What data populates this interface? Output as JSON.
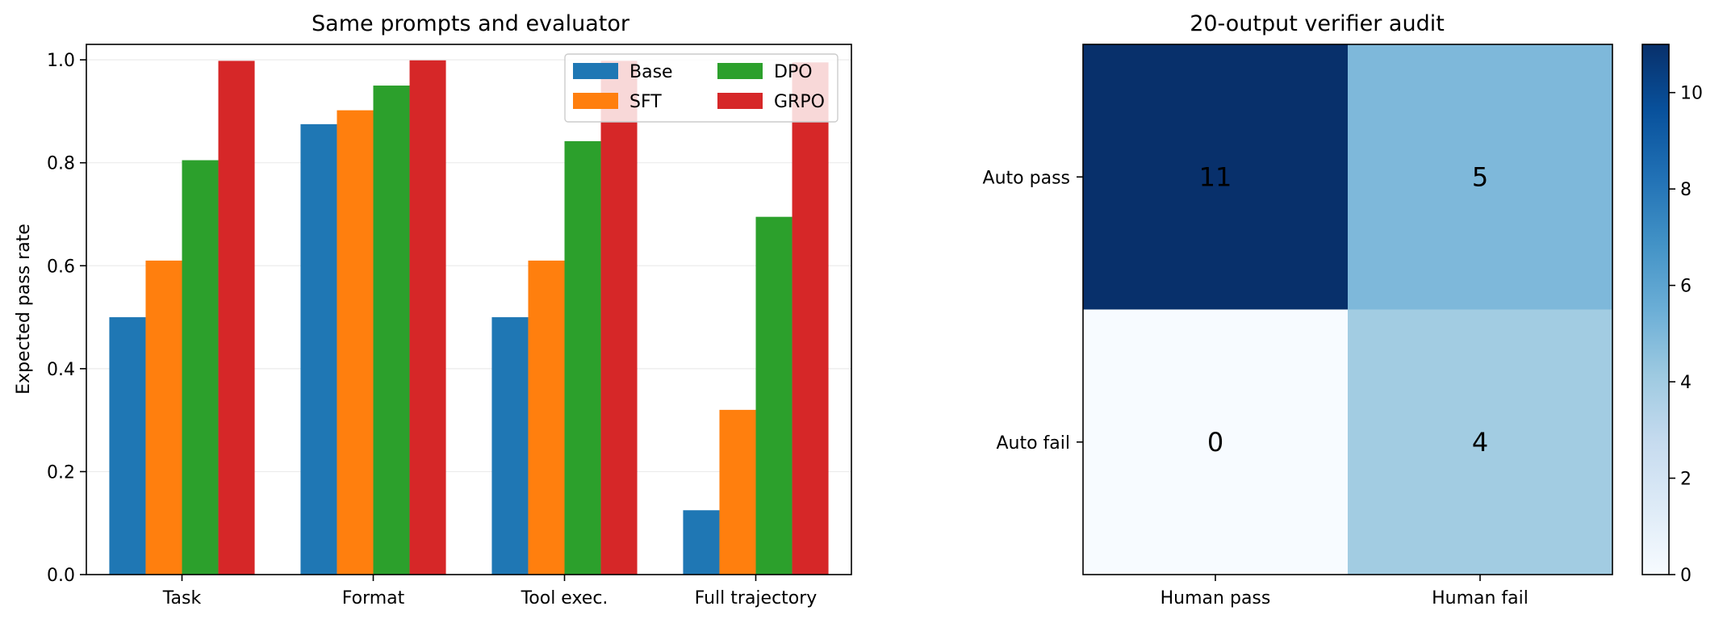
{
  "chart_data": [
    {
      "type": "bar",
      "title": "Same prompts and evaluator",
      "xlabel": "",
      "ylabel": "Expected pass rate",
      "ylim": [
        0,
        1.03
      ],
      "yticks": [
        0.0,
        0.2,
        0.4,
        0.6,
        0.8,
        1.0
      ],
      "ytick_labels": [
        "0.0",
        "0.2",
        "0.4",
        "0.6",
        "0.8",
        "1.0"
      ],
      "grid": "horizontal",
      "legend_position": "top-right",
      "categories": [
        "Task",
        "Format",
        "Tool exec.",
        "Full trajectory"
      ],
      "series": [
        {
          "name": "Base",
          "color": "#1f77b4",
          "values": [
            0.5,
            0.875,
            0.5,
            0.125
          ]
        },
        {
          "name": "SFT",
          "color": "#ff7f0e",
          "values": [
            0.61,
            0.902,
            0.61,
            0.32
          ]
        },
        {
          "name": "DPO",
          "color": "#2ca02c",
          "values": [
            0.805,
            0.95,
            0.842,
            0.695
          ]
        },
        {
          "name": "GRPO",
          "color": "#d62728",
          "values": [
            0.998,
            0.999,
            0.998,
            0.995
          ]
        }
      ]
    },
    {
      "type": "heatmap",
      "title": "20-output verifier audit",
      "colormap": "Blues",
      "x_categories": [
        "Human pass",
        "Human fail"
      ],
      "y_categories": [
        "Auto pass",
        "Auto fail"
      ],
      "values": [
        [
          11,
          5
        ],
        [
          0,
          4
        ]
      ],
      "value_labels": [
        [
          "11",
          "5"
        ],
        [
          "0",
          "4"
        ]
      ],
      "colorbar_range": [
        0,
        11
      ],
      "colorbar_ticks": [
        0,
        2,
        4,
        6,
        8,
        10
      ],
      "colorbar_tick_labels": [
        "0",
        "2",
        "4",
        "6",
        "8",
        "10"
      ]
    }
  ]
}
